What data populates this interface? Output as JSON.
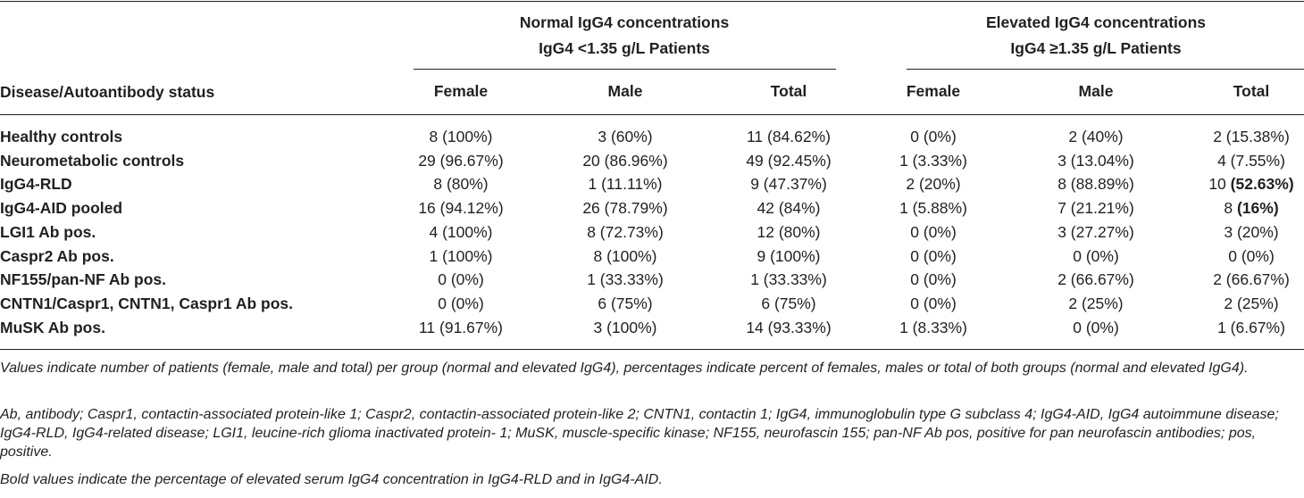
{
  "header": {
    "group_normal_line1": "Normal IgG4 concentrations",
    "group_normal_line2": "IgG4 <1.35 g/L Patients",
    "group_elevated_line1": "Elevated IgG4 concentrations",
    "group_elevated_line2": "IgG4 ≥1.35 g/L Patients",
    "row_header": "Disease/Autoantibody status",
    "columns": [
      "Female",
      "Male",
      "Total",
      "Female",
      "Male",
      "Total"
    ]
  },
  "rows": [
    {
      "label": "Healthy controls",
      "cells": [
        "8 (100%)",
        "3 (60%)",
        "11 (84.62%)",
        "0 (0%)",
        "2 (40%)",
        "2 (15.38%)"
      ]
    },
    {
      "label": "Neurometabolic controls",
      "cells": [
        "29 (96.67%)",
        "20 (86.96%)",
        "49 (92.45%)",
        "1 (3.33%)",
        "3 (13.04%)",
        "4 (7.55%)"
      ]
    },
    {
      "label": "IgG4-RLD",
      "cells": [
        "8 (80%)",
        "1 (11.11%)",
        "9 (47.37%)",
        "2 (20%)",
        "8 (88.89%)",
        "10 "
      ],
      "bold_tail": "(52.63%)"
    },
    {
      "label": "IgG4-AID pooled",
      "cells": [
        "16 (94.12%)",
        "26 (78.79%)",
        "42 (84%)",
        "1 (5.88%)",
        "7 (21.21%)",
        "8 "
      ],
      "bold_tail": "(16%)"
    },
    {
      "label": "LGI1 Ab pos.",
      "cells": [
        "4 (100%)",
        "8 (72.73%)",
        "12 (80%)",
        "0 (0%)",
        "3 (27.27%)",
        "3 (20%)"
      ]
    },
    {
      "label": "Caspr2 Ab pos.",
      "cells": [
        "1 (100%)",
        "8 (100%)",
        "9 (100%)",
        "0 (0%)",
        "0 (0%)",
        "0 (0%)"
      ]
    },
    {
      "label": "NF155/pan-NF Ab pos.",
      "cells": [
        "0 (0%)",
        "1 (33.33%)",
        "1 (33.33%)",
        "0 (0%)",
        "2 (66.67%)",
        "2 (66.67%)"
      ]
    },
    {
      "label": "CNTN1/Caspr1, CNTN1, Caspr1 Ab pos.",
      "cells": [
        "0 (0%)",
        "6 (75%)",
        "6 (75%)",
        "0 (0%)",
        "2 (25%)",
        "2 (25%)"
      ]
    },
    {
      "label": "MuSK Ab pos.",
      "cells": [
        "11 (91.67%)",
        "3 (100%)",
        "14 (93.33%)",
        "1 (8.33%)",
        "0 (0%)",
        "1 (6.67%)"
      ]
    }
  ],
  "footnotes": {
    "values_note": "Values indicate number of patients (female, male and total) per group (normal and elevated IgG4), percentages indicate percent of females, males or total of both groups (normal and elevated IgG4).",
    "abbreviations": "Ab, antibody; Caspr1, contactin-associated protein-like 1; Caspr2, contactin-associated protein-like 2; CNTN1, contactin 1; IgG4, immunoglobulin type G subclass 4; IgG4-AID, IgG4 autoimmune disease; IgG4-RLD, IgG4-related disease; LGI1, leucine-rich glioma inactivated protein- 1; MuSK, muscle-specific kinase; NF155, neurofascin 155; pan-NF Ab pos, positive for pan neurofascin antibodies; pos, positive.",
    "bold_note": "Bold values indicate the percentage of elevated serum IgG4 concentration in IgG4-RLD and in IgG4-AID."
  }
}
